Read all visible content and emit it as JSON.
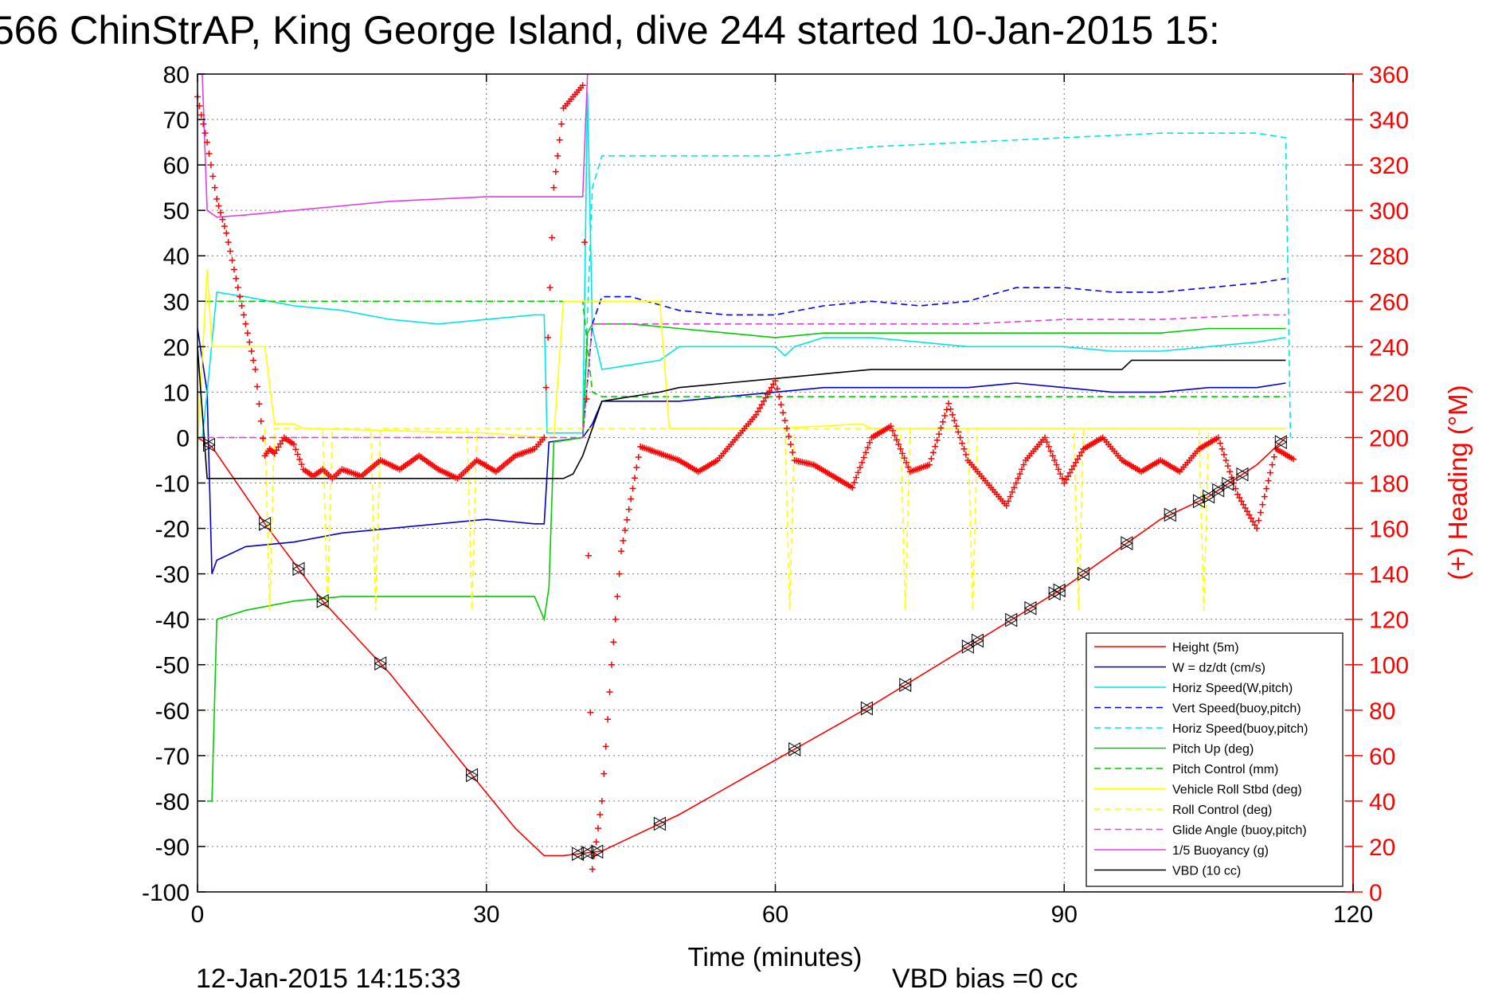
{
  "chart_data": {
    "type": "line",
    "title": "566 ChinStrAP, King George Island, dive 244 started 10-Jan-2015 15:",
    "xlabel": "Time (minutes)",
    "ylabel_right": "(+) Heading (°M)",
    "footer_left": "12-Jan-2015 14:15:33",
    "footer_center": "VBD bias =0 cc",
    "xlim": [
      0,
      120
    ],
    "ylim": [
      -100,
      80
    ],
    "ylim_right": [
      0,
      360
    ],
    "xticks": [
      0,
      30,
      60,
      90,
      120
    ],
    "yticks": [
      80,
      70,
      60,
      50,
      40,
      30,
      20,
      10,
      0,
      -10,
      -20,
      -30,
      -40,
      -50,
      -60,
      -70,
      -80,
      -90,
      -100
    ],
    "yticks_right": [
      360,
      340,
      320,
      300,
      280,
      260,
      240,
      220,
      200,
      180,
      160,
      140,
      120,
      100,
      80,
      60,
      40,
      20,
      0
    ],
    "grid": true,
    "legend_position": "bottom-right",
    "legend": [
      {
        "label": "Height (5m)",
        "color": "#ff0000",
        "style": "solid"
      },
      {
        "label": "W = dz/dt (cm/s)",
        "color": "#0000cc",
        "style": "solid"
      },
      {
        "label": "Horiz Speed(W,pitch)",
        "color": "#00e5e5",
        "style": "solid"
      },
      {
        "label": "Vert Speed(buoy,pitch)",
        "color": "#0000ff",
        "style": "dashed"
      },
      {
        "label": "Horiz Speed(buoy,pitch)",
        "color": "#00e5e5",
        "style": "dashed"
      },
      {
        "label": "Pitch Up (deg)",
        "color": "#00cc00",
        "style": "solid"
      },
      {
        "label": "Pitch Control (mm)",
        "color": "#00cc00",
        "style": "dashed"
      },
      {
        "label": "Vehicle Roll Stbd (deg)",
        "color": "#ffff00",
        "style": "solid"
      },
      {
        "label": "Roll Control (deg)",
        "color": "#ffff00",
        "style": "dashed"
      },
      {
        "label": "Glide Angle (buoy,pitch)",
        "color": "#e040e0",
        "style": "dashed"
      },
      {
        "label": "1/5 Buoyancy (g)",
        "color": "#e040e0",
        "style": "solid"
      },
      {
        "label": "VBD (10 cc)",
        "color": "#000000",
        "style": "solid"
      }
    ],
    "series": [
      {
        "name": "Height (5m)",
        "color": "#ff0000",
        "style": "solid",
        "x": [
          0,
          1.5,
          7,
          13,
          20,
          28,
          33,
          36,
          38,
          40,
          42,
          44,
          50,
          60,
          70,
          80,
          90,
          100,
          105,
          110,
          113
        ],
        "y": [
          0,
          -2,
          -19,
          -36,
          -52,
          -73,
          -86,
          -92,
          -92,
          -91.5,
          -91,
          -89,
          -83,
          -71,
          -59,
          -46,
          -33,
          -18,
          -13,
          -6,
          0
        ]
      },
      {
        "name": "W = dz/dt (cm/s)",
        "color": "#0000cc",
        "style": "solid",
        "x": [
          0,
          1,
          1.5,
          2,
          5,
          10,
          15,
          20,
          25,
          30,
          35,
          36,
          36.5,
          40,
          41,
          42,
          45,
          50,
          55,
          60,
          65,
          70,
          75,
          80,
          85,
          90,
          95,
          100,
          105,
          110,
          113
        ],
        "y": [
          24,
          10,
          -30,
          -27,
          -24,
          -23,
          -21,
          -20,
          -19,
          -18,
          -19,
          -19,
          -1,
          0,
          3,
          8,
          8,
          8,
          9,
          10,
          11,
          11,
          11,
          11,
          12,
          11,
          10,
          10,
          11,
          11,
          12
        ]
      },
      {
        "name": "Horiz Speed(W,pitch)",
        "color": "#00e5e5",
        "style": "solid",
        "x": [
          0.5,
          1,
          2,
          5,
          10,
          15,
          20,
          25,
          30,
          35,
          36,
          36.3,
          40,
          40.5,
          41,
          42,
          45,
          48,
          50,
          55,
          60,
          61,
          62,
          65,
          70,
          75,
          80,
          85,
          90,
          95,
          100,
          105,
          110,
          113
        ],
        "y": [
          0,
          10,
          32,
          31,
          29,
          28,
          26,
          25,
          26,
          27,
          27,
          1,
          1,
          76,
          24,
          15,
          16,
          17,
          20,
          20,
          20,
          18,
          20,
          22,
          22,
          21,
          20,
          20,
          20,
          19,
          19,
          20,
          21,
          22
        ]
      },
      {
        "name": "Vert Speed(buoy,pitch)",
        "color": "#0000ff",
        "style": "dashed",
        "x": [
          40,
          41,
          42,
          45,
          50,
          55,
          60,
          65,
          70,
          75,
          80,
          85,
          90,
          95,
          100,
          105,
          110,
          113
        ],
        "y": [
          0,
          25,
          31,
          31,
          28,
          27,
          27,
          29,
          30,
          29,
          30,
          33,
          33,
          32,
          32,
          33,
          34,
          35
        ]
      },
      {
        "name": "Horiz Speed(buoy,pitch)",
        "color": "#00e5e5",
        "style": "dashed",
        "x": [
          40,
          41,
          42,
          50,
          60,
          70,
          80,
          90,
          100,
          105,
          110,
          113,
          113.5
        ],
        "y": [
          0,
          55,
          62,
          62,
          62,
          64,
          65,
          66,
          67,
          67,
          67,
          66,
          0
        ]
      },
      {
        "name": "Pitch Up (deg)",
        "color": "#00cc00",
        "style": "solid",
        "x": [
          1,
          1.5,
          2,
          5,
          10,
          15,
          20,
          25,
          30,
          35,
          36,
          36.5,
          37,
          40,
          40.5,
          41,
          45,
          50,
          55,
          60,
          65,
          70,
          75,
          80,
          85,
          90,
          95,
          100,
          105,
          110,
          113
        ],
        "y": [
          -80,
          -80,
          -40,
          -38,
          -36,
          -35,
          -35,
          -35,
          -35,
          -35,
          -40,
          -33,
          -1,
          0,
          23,
          25,
          25,
          24,
          23,
          22,
          23,
          23,
          23,
          23,
          23,
          23,
          23,
          23,
          24,
          24,
          24
        ]
      },
      {
        "name": "Pitch Control (mm)",
        "color": "#00cc00",
        "style": "dashed",
        "x": [
          1,
          2,
          40,
          41,
          42,
          45,
          113
        ],
        "y": [
          30,
          30,
          30,
          10,
          9,
          9,
          9
        ]
      },
      {
        "name": "Vehicle Roll Stbd (deg)",
        "color": "#ffff00",
        "style": "solid",
        "x": [
          0,
          1,
          1.5,
          3,
          7,
          8,
          10,
          11,
          30,
          36,
          37,
          38,
          42,
          45,
          48,
          49,
          60,
          69,
          70,
          80,
          90,
          100,
          110,
          113
        ],
        "y": [
          -2,
          37,
          20,
          20,
          20,
          3,
          3,
          2,
          1,
          0,
          0,
          30,
          30,
          30,
          30,
          2,
          2,
          3,
          2,
          2,
          2,
          2,
          2,
          2
        ]
      },
      {
        "name": "Roll Control (deg)",
        "color": "#ffff00",
        "style": "dashed",
        "x": [
          7,
          7.5,
          8,
          13,
          13.5,
          14,
          18,
          18.5,
          19,
          28,
          28.5,
          29,
          61,
          61.5,
          62,
          73,
          73.5,
          74,
          80,
          80.5,
          81,
          91,
          91.5,
          92,
          104,
          104.5,
          105
        ],
        "y": [
          2,
          -38,
          2,
          2,
          -38,
          2,
          2,
          -38,
          2,
          2,
          -38,
          2,
          2,
          -38,
          2,
          2,
          -38,
          2,
          2,
          -38,
          2,
          2,
          -38,
          2,
          2,
          -38,
          2
        ]
      },
      {
        "name": "Glide Angle (buoy,pitch)",
        "color": "#e040e0",
        "style": "dashed",
        "x": [
          0,
          40,
          41,
          45,
          50,
          60,
          70,
          80,
          90,
          100,
          110,
          113
        ],
        "y": [
          0,
          0,
          25,
          25,
          25,
          25,
          25,
          25,
          26,
          26,
          27,
          27
        ]
      },
      {
        "name": "1/5 Buoyancy (g)",
        "color": "#e040e0",
        "style": "solid",
        "x": [
          0.5,
          1,
          2,
          5,
          10,
          20,
          30,
          39,
          40,
          40.5
        ],
        "y": [
          80,
          50,
          48.5,
          49,
          50,
          52,
          53,
          53,
          53,
          80
        ]
      },
      {
        "name": "VBD (10 cc)",
        "color": "#000000",
        "style": "solid",
        "x": [
          0,
          1,
          2,
          5,
          10,
          20,
          30,
          38,
          39,
          40,
          42,
          48,
          50,
          55,
          60,
          65,
          70,
          80,
          90,
          96,
          97,
          100,
          113
        ],
        "y": [
          20,
          -9,
          -9,
          -9,
          -9,
          -9,
          -9,
          -9,
          -8,
          -4,
          8,
          10,
          11,
          12,
          13,
          14,
          15,
          15,
          15,
          15,
          17,
          17,
          17
        ]
      }
    ],
    "heading_series": {
      "name": "(+) Heading (°M)",
      "color": "#ff0000",
      "marker": "+",
      "axis": "right",
      "x": [
        0,
        1,
        2,
        3,
        4,
        5,
        6,
        7,
        7.5,
        8,
        9,
        10,
        11,
        12,
        13,
        14,
        15,
        17,
        19,
        21,
        23,
        25,
        27,
        29,
        31,
        33,
        35,
        36,
        37,
        38,
        39,
        40,
        41,
        42,
        43,
        44,
        46,
        48,
        50,
        52,
        54,
        56,
        58,
        60,
        62,
        64,
        66,
        68,
        70,
        72,
        74,
        76,
        78,
        80,
        82,
        84,
        86,
        88,
        90,
        92,
        94,
        96,
        98,
        100,
        102,
        104,
        106,
        108,
        110,
        112,
        114
      ],
      "y": [
        350,
        330,
        305,
        290,
        270,
        250,
        230,
        192,
        195,
        193,
        200,
        197,
        186,
        183,
        186,
        182,
        186,
        183,
        190,
        186,
        192,
        186,
        182,
        190,
        185,
        192,
        195,
        200,
        310,
        345,
        350,
        355,
        10,
        40,
        100,
        150,
        196,
        193,
        190,
        185,
        190,
        200,
        210,
        225,
        190,
        188,
        183,
        178,
        200,
        205,
        185,
        188,
        215,
        190,
        180,
        170,
        190,
        200,
        180,
        195,
        200,
        190,
        185,
        190,
        185,
        195,
        200,
        175,
        160,
        195,
        190
      ]
    }
  }
}
